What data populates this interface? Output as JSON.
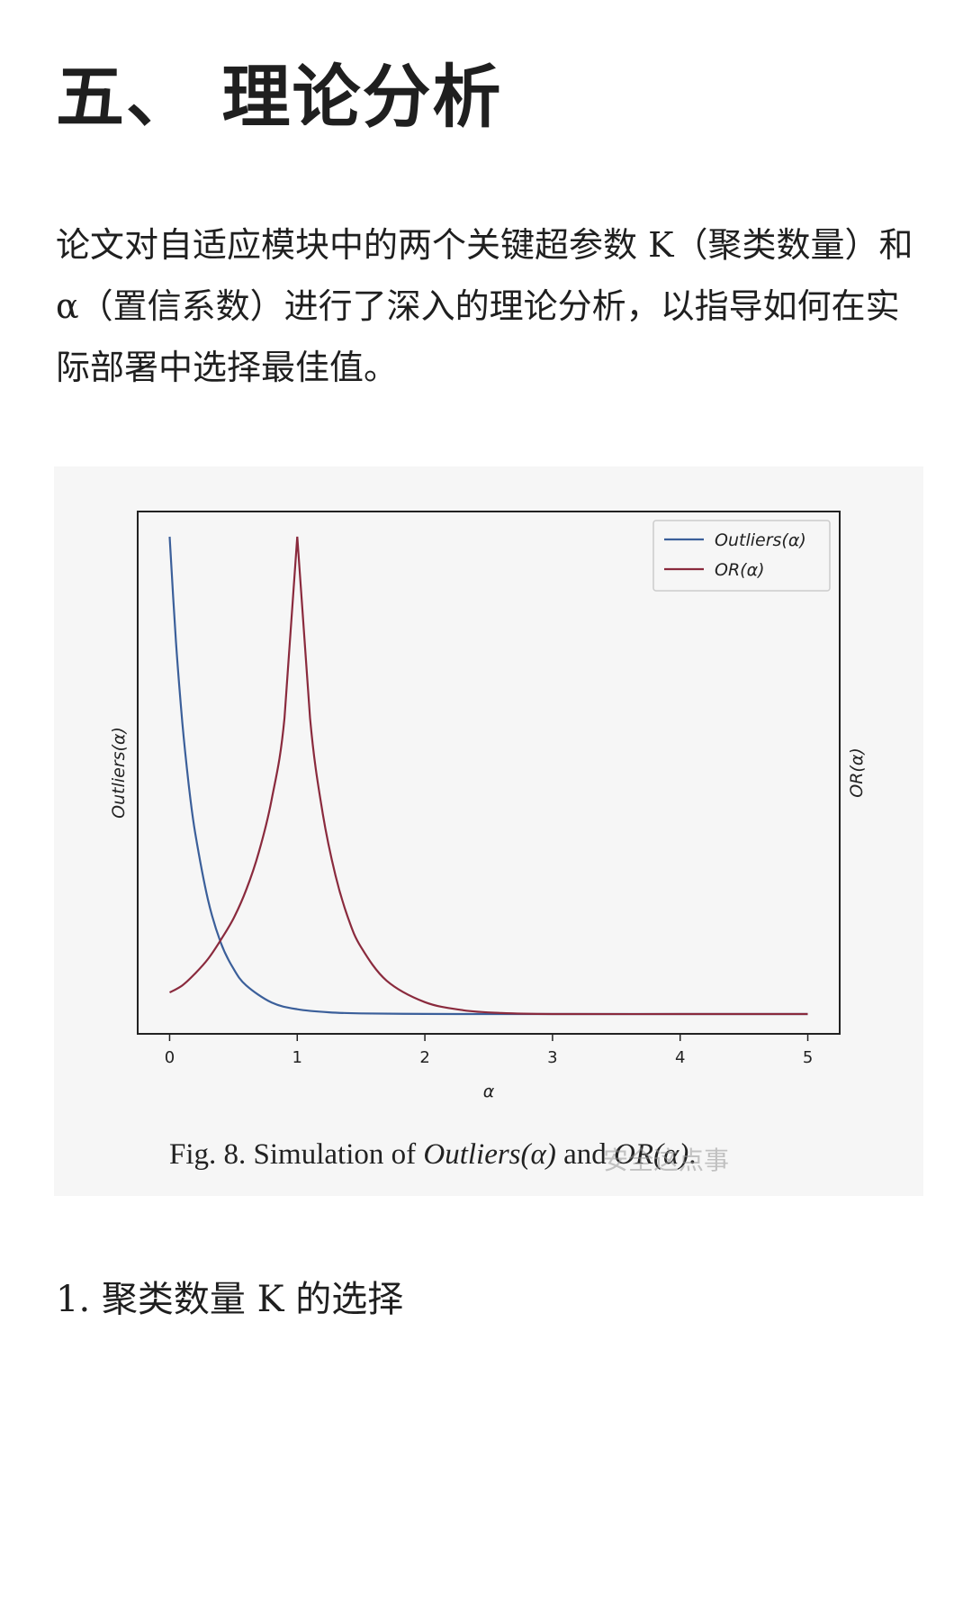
{
  "section_title": "五、 理论分析",
  "intro_paragraph": "论文对自适应模块中的两个关键超参数 K（聚类数量）和 α（置信系数）进行了深入的理论分析，以指导如何在实际部署中选择最佳值。",
  "figure": {
    "caption_prefix": "Fig. 8.   Simulation of ",
    "caption_series_1": "Outliers(α)",
    "caption_and": " and ",
    "caption_series_2": "OR(α)",
    "caption_suffix": ".",
    "watermark": "安全这点事"
  },
  "subheading": "1. 聚类数量 K 的选择",
  "chart_data": {
    "type": "line",
    "xlabel": "α",
    "ylabel_left": "Outliers(α)",
    "ylabel_right": "OR(α)",
    "xlim": [
      -0.25,
      5.25
    ],
    "xticks": [
      "0",
      "1",
      "2",
      "3",
      "4",
      "5"
    ],
    "y_tick_labels": "none",
    "legend_position": "top-right",
    "grid": false,
    "series": [
      {
        "name": "Outliers(α)",
        "color": "#3b5f9a",
        "x": [
          0,
          0.05,
          0.1,
          0.15,
          0.2,
          0.3,
          0.4,
          0.5,
          0.6,
          0.8,
          1.0,
          1.25,
          1.5,
          2.0,
          2.5,
          3.0,
          4.0,
          5.0
        ],
        "values": [
          1.0,
          0.78,
          0.61,
          0.48,
          0.38,
          0.24,
          0.15,
          0.095,
          0.06,
          0.024,
          0.01,
          0.0035,
          0.0013,
          0.0002,
          0.0,
          0.0,
          0.0,
          0.0
        ]
      },
      {
        "name": "OR(α)",
        "color": "#8a2a3d",
        "x": [
          0,
          0.1,
          0.2,
          0.3,
          0.4,
          0.5,
          0.6,
          0.7,
          0.8,
          0.9,
          1.0,
          1.1,
          1.2,
          1.3,
          1.4,
          1.5,
          1.7,
          2.0,
          2.3,
          2.6,
          3.0,
          4.0,
          5.0
        ],
        "values": [
          0.045,
          0.06,
          0.085,
          0.115,
          0.155,
          0.2,
          0.26,
          0.34,
          0.45,
          0.62,
          1.0,
          0.62,
          0.42,
          0.29,
          0.2,
          0.14,
          0.07,
          0.025,
          0.008,
          0.002,
          0.0,
          0.0,
          0.0
        ]
      }
    ]
  }
}
